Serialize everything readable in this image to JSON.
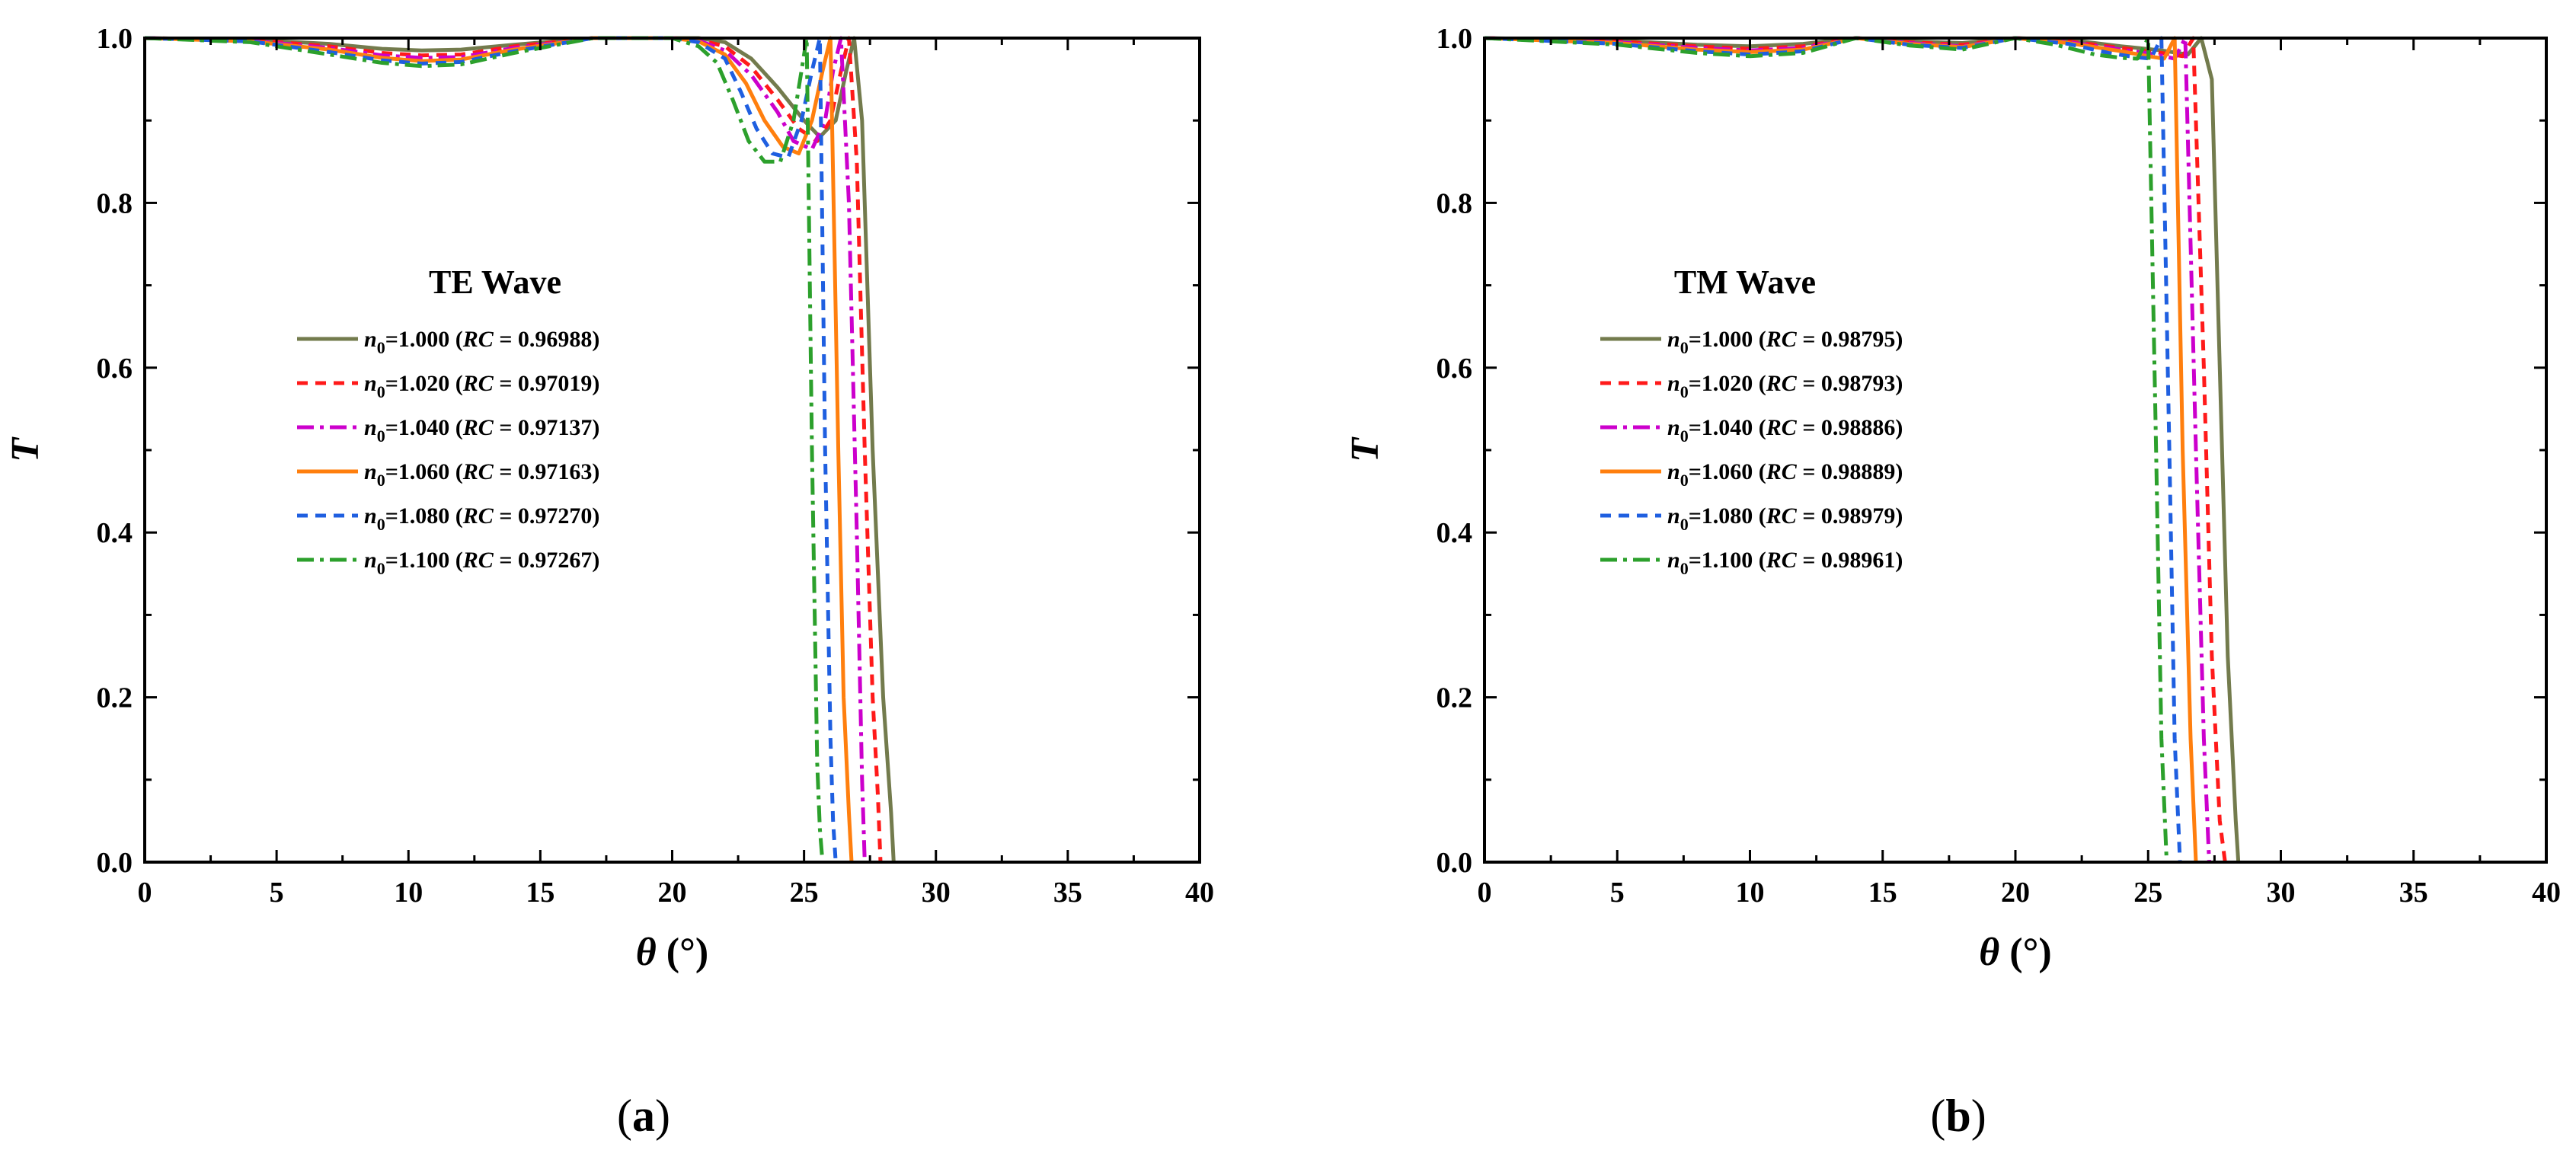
{
  "chart_data": [
    {
      "type": "line",
      "panel_label": "(a)",
      "annotation": "TE Wave",
      "xlabel": "θ (°)",
      "ylabel": "T",
      "xlim": [
        0,
        40
      ],
      "ylim": [
        0.0,
        1.0
      ],
      "xticks": [
        "0",
        "5",
        "10",
        "15",
        "20",
        "25",
        "30",
        "35",
        "40"
      ],
      "yticks": [
        "0.0",
        "0.2",
        "0.4",
        "0.6",
        "0.8",
        "1.0"
      ],
      "legend_position": "center-left",
      "series": [
        {
          "name": "n0=1.000 (RC = 0.96988)",
          "n": "n",
          "sub": "0",
          "val": "=1.000 ",
          "rc": "RC",
          "rcval": " = 0.96988)",
          "color": "#737b4d",
          "dash": "solid",
          "x": [
            0,
            4,
            7,
            9,
            10.5,
            12,
            14,
            17,
            20,
            21,
            22,
            23,
            24,
            25,
            25.6,
            26.2,
            26.6,
            26.9,
            27.2,
            27.6,
            28,
            28.3,
            28.4
          ],
          "y": [
            1.0,
            0.998,
            0.993,
            0.987,
            0.985,
            0.986,
            0.992,
            1.0,
            1.0,
            1.0,
            0.995,
            0.975,
            0.94,
            0.9,
            0.88,
            0.9,
            0.96,
            1.0,
            0.9,
            0.5,
            0.2,
            0.06,
            0.0
          ]
        },
        {
          "name": "n0=1.020 (RC = 0.97019)",
          "n": "n",
          "sub": "0",
          "val": "=1.020 ",
          "rc": "RC",
          "rcval": " = 0.97019)",
          "color": "#ff1a1a",
          "dash": "14,10",
          "x": [
            0,
            4,
            7,
            9,
            10.5,
            12,
            14,
            17,
            20,
            21,
            22,
            23,
            24,
            24.8,
            25.5,
            26,
            26.4,
            26.7,
            27,
            27.3,
            27.6,
            27.8,
            27.9
          ],
          "y": [
            1.0,
            0.998,
            0.99,
            0.982,
            0.979,
            0.98,
            0.99,
            1.0,
            1.0,
            0.998,
            0.99,
            0.965,
            0.925,
            0.89,
            0.875,
            0.9,
            0.96,
            1.0,
            0.85,
            0.5,
            0.2,
            0.08,
            0.0
          ]
        },
        {
          "name": "n0=1.040 (RC = 0.97137)",
          "n": "n",
          "sub": "0",
          "val": "=1.040 ",
          "rc": "RC",
          "rcval": " = 0.97137)",
          "color": "#cc00cc",
          "dash": "22,8,5,8",
          "x": [
            0,
            4,
            7,
            9,
            10.5,
            12,
            14,
            17,
            20,
            21,
            22,
            23,
            24,
            24.6,
            25.3,
            25.8,
            26.1,
            26.4,
            26.7,
            27,
            27.2,
            27.3
          ],
          "y": [
            1.0,
            0.997,
            0.988,
            0.979,
            0.976,
            0.977,
            0.988,
            1.0,
            1.0,
            0.997,
            0.985,
            0.955,
            0.91,
            0.875,
            0.865,
            0.9,
            0.96,
            1.0,
            0.8,
            0.4,
            0.1,
            0.0
          ]
        },
        {
          "name": "n0=1.060 (RC = 0.97163)",
          "n": "n",
          "sub": "0",
          "val": "=1.060 ",
          "rc": "RC",
          "rcval": " = 0.97163)",
          "color": "#ff7f0e",
          "dash": "solid",
          "x": [
            0,
            4,
            7,
            9,
            10.5,
            12,
            14,
            17,
            20,
            21,
            22,
            22.8,
            23.5,
            24.2,
            24.8,
            25.3,
            25.7,
            26,
            26.3,
            26.5,
            26.7,
            26.8
          ],
          "y": [
            1.0,
            0.996,
            0.986,
            0.976,
            0.972,
            0.974,
            0.986,
            1.0,
            1.0,
            0.996,
            0.98,
            0.945,
            0.9,
            0.868,
            0.86,
            0.9,
            0.96,
            1.0,
            0.5,
            0.2,
            0.06,
            0.0
          ]
        },
        {
          "name": "n0=1.080 (RC = 0.97270)",
          "n": "n",
          "sub": "0",
          "val": "=1.080 ",
          "rc": "RC",
          "rcval": " = 0.97270)",
          "color": "#1f5fe0",
          "dash": "14,10",
          "x": [
            0,
            4,
            7,
            9,
            10.5,
            12,
            14,
            17,
            20,
            21,
            22,
            22.6,
            23.2,
            23.8,
            24.4,
            24.9,
            25.3,
            25.6,
            25.8,
            26,
            26.1,
            26.2
          ],
          "y": [
            1.0,
            0.996,
            0.983,
            0.973,
            0.969,
            0.971,
            0.984,
            1.0,
            1.0,
            0.995,
            0.975,
            0.935,
            0.89,
            0.86,
            0.855,
            0.9,
            0.96,
            1.0,
            0.5,
            0.15,
            0.05,
            0.0
          ]
        },
        {
          "name": "n0=1.100 (RC = 0.97267)",
          "n": "n",
          "sub": "0",
          "val": "=1.100 ",
          "rc": "RC",
          "rcval": " = 0.97267)",
          "color": "#2ca02c",
          "dash": "22,8,5,8",
          "x": [
            0,
            4,
            7,
            9,
            10.5,
            12,
            14,
            17,
            20,
            21,
            21.7,
            22.3,
            22.9,
            23.5,
            24.1,
            24.6,
            24.9,
            25.1,
            25.3,
            25.5,
            25.6,
            25.7
          ],
          "y": [
            1.0,
            0.995,
            0.98,
            0.97,
            0.966,
            0.968,
            0.982,
            1.0,
            1.0,
            0.99,
            0.97,
            0.925,
            0.875,
            0.85,
            0.85,
            0.9,
            0.96,
            1.0,
            0.5,
            0.12,
            0.04,
            0.0
          ]
        }
      ]
    },
    {
      "type": "line",
      "panel_label": "(b)",
      "annotation": "TM Wave",
      "xlabel": "θ (°)",
      "ylabel": "T",
      "xlim": [
        0,
        40
      ],
      "ylim": [
        0.0,
        1.0
      ],
      "xticks": [
        "0",
        "5",
        "10",
        "15",
        "20",
        "25",
        "30",
        "35",
        "40"
      ],
      "yticks": [
        "0.0",
        "0.2",
        "0.4",
        "0.6",
        "0.8",
        "1.0"
      ],
      "legend_position": "top-left",
      "series": [
        {
          "name": "n0=1.000 (RC = 0.98795)",
          "n": "n",
          "sub": "0",
          "val": "=1.000 ",
          "rc": "RC",
          "rcval": " = 0.98795)",
          "color": "#737b4d",
          "dash": "solid",
          "x": [
            0,
            5,
            8,
            10,
            12,
            14,
            16,
            18,
            20,
            22,
            24,
            25.5,
            26.5,
            27,
            27.4,
            27.7,
            28,
            28.3,
            28.4
          ],
          "y": [
            1.0,
            0.997,
            0.992,
            0.99,
            0.993,
            1.0,
            0.996,
            0.994,
            1.0,
            0.998,
            0.99,
            0.985,
            0.98,
            1.0,
            0.95,
            0.6,
            0.25,
            0.05,
            0.0
          ]
        },
        {
          "name": "n0=1.020 (RC = 0.98793)",
          "n": "n",
          "sub": "0",
          "val": "=1.020 ",
          "rc": "RC",
          "rcval": " = 0.98793)",
          "color": "#ff1a1a",
          "dash": "14,10",
          "x": [
            0,
            5,
            8,
            10,
            12,
            14,
            16,
            18,
            20,
            22,
            24,
            25.5,
            26.3,
            26.7,
            27.1,
            27.4,
            27.7,
            27.9
          ],
          "y": [
            1.0,
            0.996,
            0.99,
            0.987,
            0.99,
            1.0,
            0.995,
            0.992,
            1.0,
            0.996,
            0.988,
            0.982,
            0.978,
            1.0,
            0.6,
            0.25,
            0.05,
            0.0
          ]
        },
        {
          "name": "n0=1.040 (RC = 0.98886)",
          "n": "n",
          "sub": "0",
          "val": "=1.040 ",
          "rc": "RC",
          "rcval": " = 0.98886)",
          "color": "#cc00cc",
          "dash": "22,8,5,8",
          "x": [
            0,
            5,
            8,
            10,
            12,
            14,
            16,
            18,
            20,
            22,
            24,
            25.3,
            26,
            26.4,
            26.8,
            27.1,
            27.3
          ],
          "y": [
            1.0,
            0.995,
            0.988,
            0.985,
            0.988,
            1.0,
            0.994,
            0.99,
            1.0,
            0.995,
            0.986,
            0.98,
            0.975,
            1.0,
            0.5,
            0.15,
            0.0
          ]
        },
        {
          "name": "n0=1.060 (RC = 0.98889)",
          "n": "n",
          "sub": "0",
          "val": "=1.060 ",
          "rc": "RC",
          "rcval": " = 0.98889)",
          "color": "#ff7f0e",
          "dash": "solid",
          "x": [
            0,
            5,
            8,
            10,
            12,
            14,
            16,
            18,
            20,
            22,
            24,
            25,
            25.6,
            26,
            26.3,
            26.6,
            26.8
          ],
          "y": [
            1.0,
            0.994,
            0.986,
            0.983,
            0.986,
            1.0,
            0.993,
            0.989,
            1.0,
            0.994,
            0.984,
            0.978,
            0.975,
            1.0,
            0.5,
            0.15,
            0.0
          ]
        },
        {
          "name": "n0=1.080 (RC = 0.98979)",
          "n": "n",
          "sub": "0",
          "val": "=1.080 ",
          "rc": "RC",
          "rcval": " = 0.98979)",
          "color": "#1f5fe0",
          "dash": "14,10",
          "x": [
            0,
            5,
            8,
            10,
            12,
            14,
            16,
            18,
            20,
            22,
            23.5,
            24.5,
            25.1,
            25.5,
            25.8,
            26,
            26.2
          ],
          "y": [
            1.0,
            0.993,
            0.984,
            0.98,
            0.984,
            1.0,
            0.992,
            0.988,
            1.0,
            0.993,
            0.982,
            0.977,
            0.975,
            1.0,
            0.5,
            0.15,
            0.0
          ]
        },
        {
          "name": "n0=1.100 (RC = 0.98961)",
          "n": "n",
          "sub": "0",
          "val": "=1.100 ",
          "rc": "RC",
          "rcval": " = 0.98961)",
          "color": "#2ca02c",
          "dash": "22,8,5,8",
          "x": [
            0,
            5,
            8,
            10,
            12,
            14,
            16,
            18,
            20,
            21.5,
            23,
            24,
            24.6,
            25,
            25.3,
            25.5,
            25.7
          ],
          "y": [
            1.0,
            0.992,
            0.982,
            0.978,
            0.982,
            1.0,
            0.991,
            0.986,
            1.0,
            0.992,
            0.98,
            0.976,
            0.975,
            1.0,
            0.5,
            0.15,
            0.0
          ]
        }
      ]
    }
  ]
}
